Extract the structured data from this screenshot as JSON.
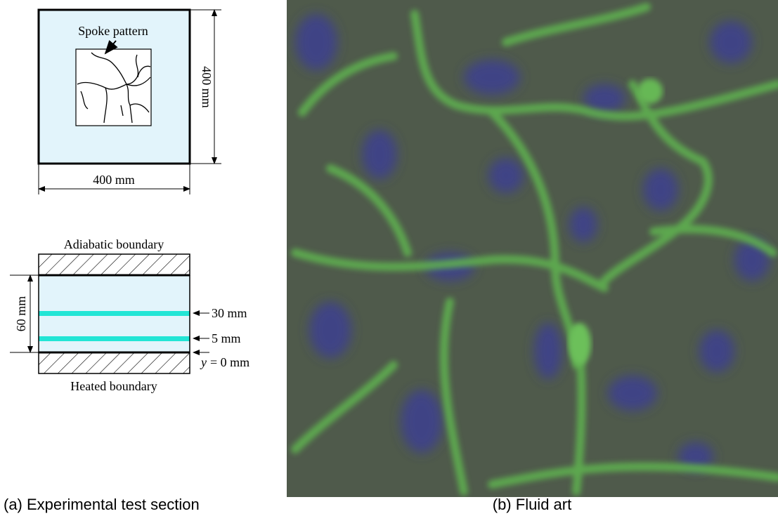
{
  "panel_a": {
    "top_view": {
      "spoke_label": "Spoke pattern",
      "height_label": "400 mm",
      "width_label": "400 mm"
    },
    "side_view": {
      "top_label": "Adiabatic boundary",
      "bottom_label": "Heated boundary",
      "height_label": "60 mm",
      "levels": [
        "30 mm",
        "5 mm"
      ],
      "origin_var": "y",
      "origin_label": "= 0 mm"
    },
    "caption": "(a) Experimental test section"
  },
  "panel_b": {
    "caption": "(b) Fluid art"
  }
}
